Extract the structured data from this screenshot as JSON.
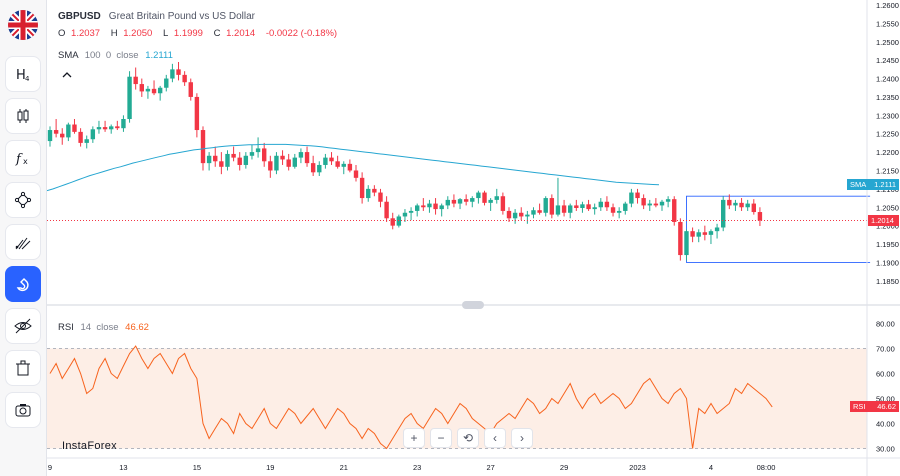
{
  "sidebar": {
    "items": [
      {
        "name": "flag-gbpusd",
        "icon": "uk-flag-icon"
      },
      {
        "name": "indicators-button",
        "icon": "h4-timeframe-icon",
        "label": "H4"
      },
      {
        "name": "chart-type-button",
        "icon": "candles-icon"
      },
      {
        "name": "fx-button",
        "icon": "fx-icon"
      },
      {
        "name": "drawing-button",
        "icon": "path-tool-icon"
      },
      {
        "name": "fib-button",
        "icon": "trend-tool-icon"
      },
      {
        "name": "magnet-button",
        "icon": "magnet-icon"
      },
      {
        "name": "hide-drawings-button",
        "icon": "eye-off-icon"
      },
      {
        "name": "trash-button",
        "icon": "trash-icon"
      },
      {
        "name": "screenshot-button",
        "icon": "camera-icon"
      }
    ]
  },
  "legend": {
    "symbol": "GBPUSD",
    "description": "Great Britain Pound vs US Dollar",
    "o_label": "O",
    "o_value": "1.2037",
    "h_label": "H",
    "h_value": "1.2050",
    "l_label": "L",
    "l_value": "1.1999",
    "c_label": "C",
    "c_value": "1.2014",
    "change": "-0.0022 (-0.18%)",
    "sma_label": "SMA",
    "sma_params": "100  0  close",
    "sma_value": "1.2111",
    "rsi_label": "RSI",
    "rsi_params": "14  close",
    "rsi_value": "46.62"
  },
  "watermark": "InstaForex",
  "nav": {
    "zoom_in": "+",
    "zoom_out": "−",
    "reset": "⟲",
    "back": "‹",
    "forward": "›"
  },
  "badges": {
    "sma_label": "SMA",
    "sma_value": "1.2111",
    "price_value": "1.2014",
    "rsi_label": "RSI",
    "rsi_value": "46.62"
  },
  "colors": {
    "up": "#22ab94",
    "down": "#f23645",
    "sma": "#26a6d1",
    "rsi": "#f7631e",
    "rsi_band": "#fdeee6",
    "price_line": "#f23645",
    "accent": "#2962ff"
  },
  "chart_data": [
    {
      "type": "candlestick",
      "title": "GBPUSD",
      "y_ticks": [
        "1.2600",
        "1.2550",
        "1.2500",
        "1.2450",
        "1.2400",
        "1.2350",
        "1.2300",
        "1.2250",
        "1.2200",
        "1.2150",
        "1.2100",
        "1.2050",
        "1.2000",
        "1.1950",
        "1.1900",
        "1.1850"
      ],
      "ylim": [
        1.1825,
        1.26
      ],
      "x_ticks": [
        {
          "label": "9",
          "i": 0
        },
        {
          "label": "13",
          "i": 12
        },
        {
          "label": "15",
          "i": 24
        },
        {
          "label": "19",
          "i": 36
        },
        {
          "label": "21",
          "i": 48
        },
        {
          "label": "23",
          "i": 60
        },
        {
          "label": "27",
          "i": 72
        },
        {
          "label": "29",
          "i": 84
        },
        {
          "label": "2023",
          "i": 96
        },
        {
          "label": "4",
          "i": 108
        },
        {
          "label": "08:00",
          "i": 117
        }
      ],
      "candles": [
        [
          1.223,
          1.227,
          1.2215,
          1.226
        ],
        [
          1.226,
          1.229,
          1.224,
          1.225
        ],
        [
          1.225,
          1.2265,
          1.222,
          1.224
        ],
        [
          1.224,
          1.228,
          1.223,
          1.2275
        ],
        [
          1.2275,
          1.229,
          1.225,
          1.2255
        ],
        [
          1.2255,
          1.2265,
          1.2215,
          1.2225
        ],
        [
          1.2225,
          1.2245,
          1.221,
          1.2235
        ],
        [
          1.2235,
          1.227,
          1.2225,
          1.2262
        ],
        [
          1.2262,
          1.2285,
          1.225,
          1.2268
        ],
        [
          1.2268,
          1.2285,
          1.2255,
          1.2262
        ],
        [
          1.2262,
          1.2275,
          1.225,
          1.227
        ],
        [
          1.227,
          1.2285,
          1.226,
          1.2265
        ],
        [
          1.2265,
          1.23,
          1.2255,
          1.229
        ],
        [
          1.229,
          1.242,
          1.228,
          1.2405
        ],
        [
          1.2405,
          1.243,
          1.237,
          1.2385
        ],
        [
          1.2385,
          1.24,
          1.235,
          1.2365
        ],
        [
          1.2365,
          1.238,
          1.2345,
          1.2372
        ],
        [
          1.2372,
          1.2395,
          1.2355,
          1.236
        ],
        [
          1.236,
          1.238,
          1.234,
          1.2375
        ],
        [
          1.2375,
          1.241,
          1.2365,
          1.24
        ],
        [
          1.24,
          1.244,
          1.239,
          1.2425
        ],
        [
          1.2425,
          1.2445,
          1.2395,
          1.241
        ],
        [
          1.241,
          1.242,
          1.238,
          1.239
        ],
        [
          1.239,
          1.24,
          1.234,
          1.235
        ],
        [
          1.235,
          1.236,
          1.224,
          1.226
        ],
        [
          1.226,
          1.227,
          1.215,
          1.217
        ],
        [
          1.217,
          1.22,
          1.215,
          1.219
        ],
        [
          1.219,
          1.2215,
          1.216,
          1.2175
        ],
        [
          1.2175,
          1.22,
          1.214,
          1.216
        ],
        [
          1.216,
          1.2205,
          1.215,
          1.2195
        ],
        [
          1.2195,
          1.2215,
          1.2175,
          1.2185
        ],
        [
          1.2185,
          1.22,
          1.215,
          1.2165
        ],
        [
          1.2165,
          1.22,
          1.2155,
          1.219
        ],
        [
          1.219,
          1.222,
          1.218,
          1.22
        ],
        [
          1.22,
          1.224,
          1.2185,
          1.221
        ],
        [
          1.221,
          1.2225,
          1.216,
          1.2175
        ],
        [
          1.2175,
          1.219,
          1.213,
          1.215
        ],
        [
          1.215,
          1.22,
          1.214,
          1.219
        ],
        [
          1.219,
          1.2205,
          1.2165,
          1.218
        ],
        [
          1.218,
          1.2195,
          1.215,
          1.216
        ],
        [
          1.216,
          1.2195,
          1.2155,
          1.2185
        ],
        [
          1.2185,
          1.221,
          1.217,
          1.22
        ],
        [
          1.22,
          1.2215,
          1.216,
          1.217
        ],
        [
          1.217,
          1.219,
          1.2135,
          1.2145
        ],
        [
          1.2145,
          1.2175,
          1.2135,
          1.2165
        ],
        [
          1.2165,
          1.2195,
          1.2155,
          1.2185
        ],
        [
          1.2185,
          1.22,
          1.2165,
          1.2175
        ],
        [
          1.2175,
          1.219,
          1.2155,
          1.216
        ],
        [
          1.216,
          1.2175,
          1.214,
          1.2168
        ],
        [
          1.2168,
          1.218,
          1.2145,
          1.215
        ],
        [
          1.215,
          1.2165,
          1.212,
          1.213
        ],
        [
          1.213,
          1.2145,
          1.206,
          1.2075
        ],
        [
          1.2075,
          1.211,
          1.2065,
          1.21
        ],
        [
          1.21,
          1.211,
          1.208,
          1.209
        ],
        [
          1.209,
          1.21,
          1.205,
          1.2065
        ],
        [
          1.2065,
          1.208,
          1.201,
          1.202
        ],
        [
          1.202,
          1.2035,
          1.199,
          1.2
        ],
        [
          1.2,
          1.203,
          1.1995,
          1.2025
        ],
        [
          1.2025,
          1.2045,
          1.201,
          1.2035
        ],
        [
          1.2035,
          1.205,
          1.2015,
          1.204
        ],
        [
          1.204,
          1.206,
          1.2025,
          1.2055
        ],
        [
          1.2055,
          1.2075,
          1.204,
          1.205
        ],
        [
          1.205,
          1.207,
          1.2035,
          1.206
        ],
        [
          1.206,
          1.2075,
          1.203,
          1.2045
        ],
        [
          1.2045,
          1.206,
          1.2025,
          1.2055
        ],
        [
          1.2055,
          1.208,
          1.2045,
          1.207
        ],
        [
          1.207,
          1.2085,
          1.205,
          1.206
        ],
        [
          1.206,
          1.2075,
          1.2045,
          1.2072
        ],
        [
          1.2072,
          1.2085,
          1.2055,
          1.2065
        ],
        [
          1.2065,
          1.208,
          1.205,
          1.2075
        ],
        [
          1.2075,
          1.2095,
          1.206,
          1.209
        ],
        [
          1.209,
          1.2095,
          1.2055,
          1.2062
        ],
        [
          1.2062,
          1.2075,
          1.204,
          1.207
        ],
        [
          1.207,
          1.21,
          1.206,
          1.208
        ],
        [
          1.208,
          1.209,
          1.203,
          1.204
        ],
        [
          1.204,
          1.205,
          1.201,
          1.202
        ],
        [
          1.202,
          1.2045,
          1.2005,
          1.2035
        ],
        [
          1.2035,
          1.205,
          1.2015,
          1.2025
        ],
        [
          1.2025,
          1.204,
          1.2005,
          1.203
        ],
        [
          1.203,
          1.205,
          1.202,
          1.2042
        ],
        [
          1.2042,
          1.206,
          1.203,
          1.2035
        ],
        [
          1.2035,
          1.208,
          1.2025,
          1.2075
        ],
        [
          1.2075,
          1.2085,
          1.202,
          1.203
        ],
        [
          1.203,
          1.213,
          1.2025,
          1.2055
        ],
        [
          1.2055,
          1.207,
          1.2025,
          1.2035
        ],
        [
          1.2035,
          1.206,
          1.202,
          1.2055
        ],
        [
          1.2055,
          1.207,
          1.204,
          1.2048
        ],
        [
          1.2048,
          1.2065,
          1.2035,
          1.2058
        ],
        [
          1.2058,
          1.207,
          1.204,
          1.2045
        ],
        [
          1.2045,
          1.206,
          1.203,
          1.205
        ],
        [
          1.205,
          1.2075,
          1.204,
          1.2065
        ],
        [
          1.2065,
          1.208,
          1.204,
          1.205
        ],
        [
          1.205,
          1.206,
          1.2025,
          1.2035
        ],
        [
          1.2035,
          1.205,
          1.202,
          1.204
        ],
        [
          1.204,
          1.2065,
          1.203,
          1.206
        ],
        [
          1.206,
          1.21,
          1.205,
          1.209
        ],
        [
          1.209,
          1.21,
          1.206,
          1.2075
        ],
        [
          1.2075,
          1.2085,
          1.2045,
          1.2055
        ],
        [
          1.2055,
          1.207,
          1.204,
          1.206
        ],
        [
          1.206,
          1.2075,
          1.205,
          1.2055
        ],
        [
          1.2055,
          1.207,
          1.204,
          1.2065
        ],
        [
          1.2065,
          1.208,
          1.205,
          1.2072
        ],
        [
          1.2072,
          1.208,
          1.2,
          1.201
        ],
        [
          1.201,
          1.202,
          1.1905,
          1.192
        ],
        [
          1.192,
          1.199,
          1.1905,
          1.1985
        ],
        [
          1.1985,
          1.1995,
          1.1955,
          1.197
        ],
        [
          1.197,
          1.199,
          1.1955,
          1.1982
        ],
        [
          1.1982,
          1.2,
          1.196,
          1.1975
        ],
        [
          1.1975,
          1.199,
          1.195,
          1.1985
        ],
        [
          1.1985,
          1.2005,
          1.1965,
          1.1995
        ],
        [
          1.1995,
          1.208,
          1.1985,
          1.207
        ],
        [
          1.207,
          1.2085,
          1.2045,
          1.2055
        ],
        [
          1.2055,
          1.207,
          1.204,
          1.2062
        ],
        [
          1.2062,
          1.2075,
          1.204,
          1.205
        ],
        [
          1.205,
          1.207,
          1.204,
          1.206
        ],
        [
          1.206,
          1.2072,
          1.203,
          1.2037
        ],
        [
          1.2037,
          1.205,
          1.1999,
          1.2014
        ]
      ],
      "sma": [
        1.2095,
        1.21,
        1.2106,
        1.2112,
        1.2118,
        1.2124,
        1.213,
        1.2136,
        1.2141,
        1.2146,
        1.2151,
        1.2156,
        1.216,
        1.2165,
        1.217,
        1.2174,
        1.2178,
        1.2182,
        1.2186,
        1.219,
        1.2194,
        1.2197,
        1.22,
        1.2203,
        1.2206,
        1.2208,
        1.221,
        1.2212,
        1.2214,
        1.2216,
        1.2217,
        1.2218,
        1.2219,
        1.222,
        1.222,
        1.2221,
        1.2221,
        1.2221,
        1.2221,
        1.2221,
        1.222,
        1.2219,
        1.2218,
        1.2217,
        1.2216,
        1.2214,
        1.2212,
        1.221,
        1.2208,
        1.2206,
        1.2204,
        1.2202,
        1.22,
        1.2198,
        1.2196,
        1.2194,
        1.2192,
        1.219,
        1.2188,
        1.2186,
        1.2184,
        1.2182,
        1.218,
        1.2178,
        1.2176,
        1.2174,
        1.2172,
        1.217,
        1.2168,
        1.2166,
        1.2164,
        1.2162,
        1.216,
        1.2158,
        1.2156,
        1.2154,
        1.2152,
        1.215,
        1.2148,
        1.2146,
        1.2144,
        1.2142,
        1.214,
        1.2138,
        1.2136,
        1.2134,
        1.2132,
        1.213,
        1.2128,
        1.2126,
        1.2124,
        1.2122,
        1.212,
        1.2118,
        1.2117,
        1.2116,
        1.2115,
        1.2114,
        1.2113,
        1.2112,
        1.2111
      ],
      "box": {
        "top": 1.208,
        "bottom": 1.19,
        "start_index": 104
      },
      "last_price": 1.2014,
      "sma_last": 1.2111
    },
    {
      "type": "line",
      "title": "RSI 14 close",
      "y_ticks": [
        "80.00",
        "70.00",
        "60.00",
        "50.00",
        "40.00",
        "30.00"
      ],
      "ylim": [
        27,
        83
      ],
      "band": [
        30,
        70
      ],
      "values": [
        60,
        64,
        58,
        62,
        66,
        60,
        52,
        54,
        62,
        66,
        60,
        58,
        63,
        68,
        71,
        66,
        62,
        66,
        68,
        64,
        60,
        66,
        68,
        62,
        58,
        40,
        34,
        38,
        42,
        40,
        36,
        44,
        40,
        38,
        42,
        46,
        40,
        38,
        42,
        46,
        44,
        40,
        43,
        46,
        42,
        38,
        42,
        46,
        44,
        40,
        38,
        34,
        38,
        36,
        32,
        30,
        34,
        38,
        42,
        44,
        40,
        38,
        42,
        46,
        44,
        40,
        44,
        48,
        46,
        42,
        40,
        38,
        36,
        40,
        42,
        44,
        42,
        46,
        50,
        48,
        44,
        46,
        50,
        48,
        52,
        56,
        50,
        46,
        50,
        52,
        48,
        50,
        52,
        50,
        46,
        48,
        52,
        56,
        58,
        54,
        50,
        48,
        52,
        54,
        50,
        30,
        46,
        44,
        48,
        44,
        46,
        48,
        54,
        52,
        56,
        54,
        52,
        50,
        46.62
      ]
    }
  ]
}
